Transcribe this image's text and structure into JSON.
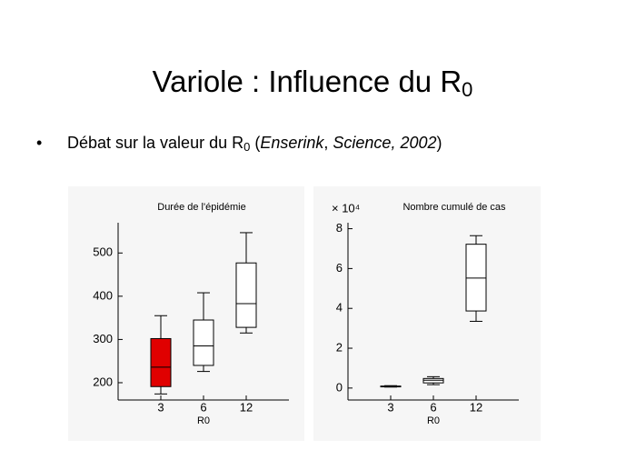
{
  "slide": {
    "title": [
      "Variole : Influence du R",
      "0"
    ],
    "bullet": [
      "Débat sur la valeur du R",
      "0",
      " (",
      "Enserink",
      ", ",
      "Science",
      ", 2002",
      ")"
    ]
  },
  "chart_data": [
    {
      "type": "box",
      "title": "Durée de l'épidémie",
      "xlabel": "R0",
      "categories": [
        "3",
        "6",
        "12"
      ],
      "min": [
        174,
        226,
        315
      ],
      "q1": [
        191,
        240,
        328
      ],
      "median": [
        236,
        285,
        383
      ],
      "q3": [
        302,
        345,
        477
      ],
      "max": [
        355,
        408,
        547
      ],
      "colors": [
        "#e00000",
        "#ffffff",
        "#ffffff"
      ],
      "ylim": [
        160,
        570
      ],
      "yticks": [
        200,
        300,
        400,
        500
      ]
    },
    {
      "type": "box",
      "title": "Nombre cumulé de cas",
      "multiplier": "× 10⁴",
      "xlabel": "R0",
      "categories": [
        "3",
        "6",
        "12"
      ],
      "min": [
        0.05,
        0.17,
        3.35
      ],
      "q1": [
        0.06,
        0.26,
        3.87
      ],
      "median": [
        0.08,
        0.39,
        5.52
      ],
      "q3": [
        0.1,
        0.48,
        7.22
      ],
      "max": [
        0.12,
        0.57,
        7.65
      ],
      "colors": [
        "#ffffff",
        "#ffffff",
        "#ffffff"
      ],
      "ylim": [
        -0.6,
        8.3
      ],
      "yticks": [
        0,
        2,
        4,
        6,
        8
      ]
    }
  ]
}
